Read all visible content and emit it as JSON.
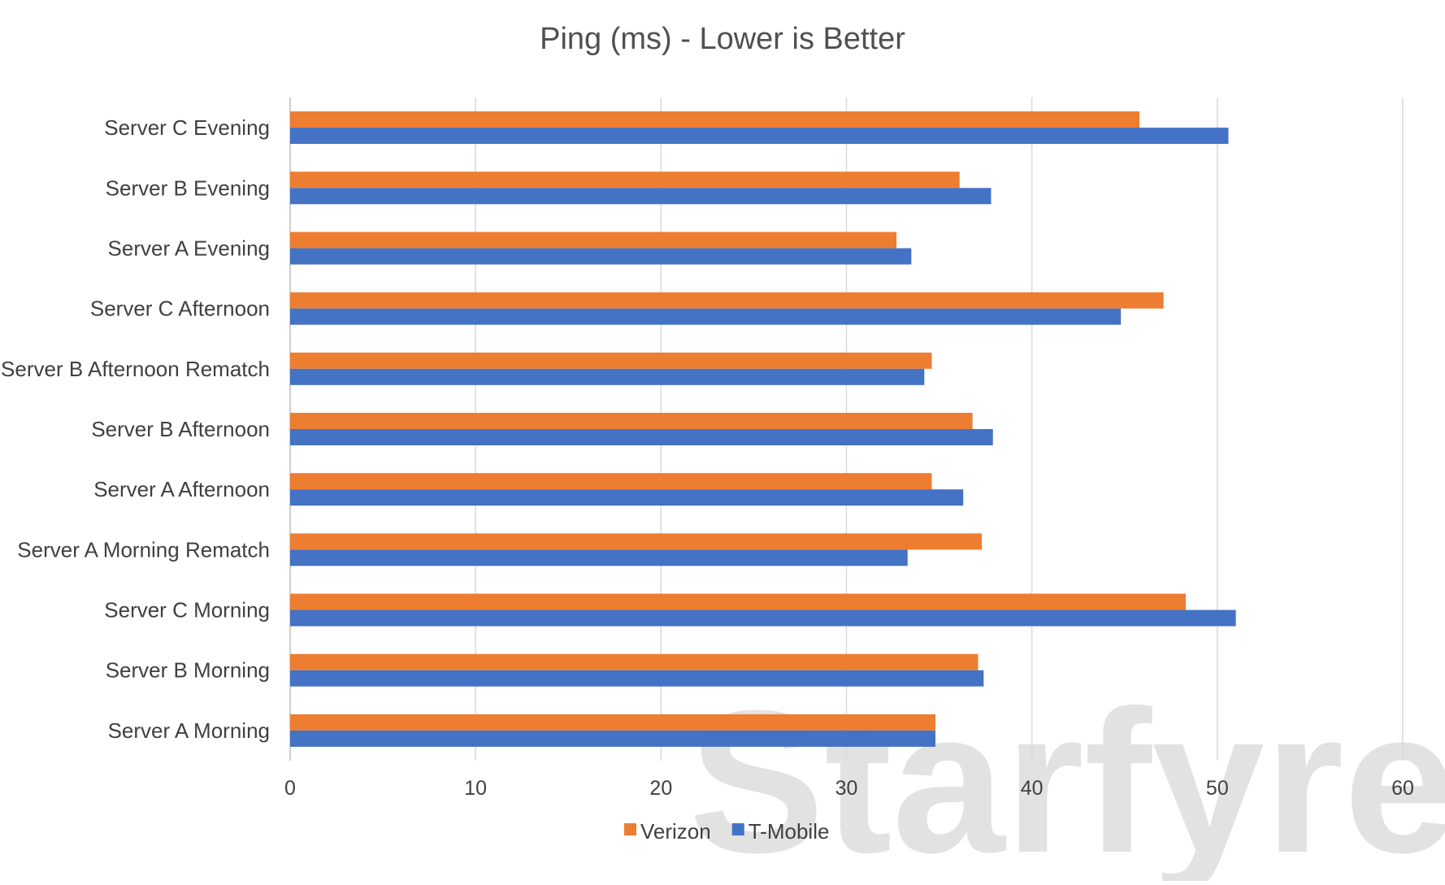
{
  "chart_data": {
    "type": "bar",
    "orientation": "horizontal",
    "title": "Ping (ms) - Lower is Better",
    "xlabel": "",
    "ylabel": "",
    "xlim": [
      0,
      60
    ],
    "xticks": [
      "0",
      "10",
      "20",
      "30",
      "40",
      "50",
      "60"
    ],
    "grid": "vertical",
    "legend_position": "bottom",
    "categories": [
      "Server C Evening",
      "Server B Evening",
      "Server A Evening",
      "Server C Afternoon",
      "Server B Afternoon Rematch",
      "Server B Afternoon",
      "Server A Afternoon",
      "Server A Morning Rematch",
      "Server C Morning",
      "Server B Morning",
      "Server A Morning"
    ],
    "series": [
      {
        "name": "Verizon",
        "color": "#ED7D31",
        "values": [
          45.8,
          36.1,
          32.7,
          47.1,
          34.6,
          36.8,
          34.6,
          37.3,
          48.3,
          37.1,
          34.8
        ]
      },
      {
        "name": "T-Mobile",
        "color": "#4472C4",
        "values": [
          50.6,
          37.8,
          33.5,
          44.8,
          34.2,
          37.9,
          36.3,
          33.3,
          51.0,
          37.4,
          34.8
        ]
      }
    ],
    "watermark": "Starfyre"
  }
}
